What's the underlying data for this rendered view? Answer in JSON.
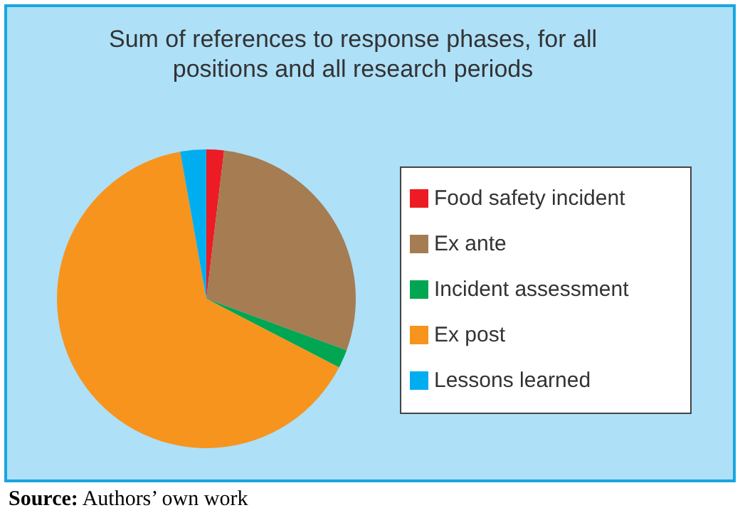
{
  "chart_data": {
    "type": "pie",
    "title": "Sum of references to response phases, for all positions and all research periods",
    "categories": [
      "Food safety incident",
      "Ex ante",
      "Incident assessment",
      "Ex post",
      "Lessons learned"
    ],
    "values": [
      1.9,
      28.7,
      2,
      64.6,
      2.8
    ],
    "colors": [
      "#ed1c24",
      "#a67c52",
      "#00a651",
      "#f7941d",
      "#00aeef"
    ],
    "legend": "right",
    "annotations": [
      "Source: Authors’ own work"
    ]
  }
}
